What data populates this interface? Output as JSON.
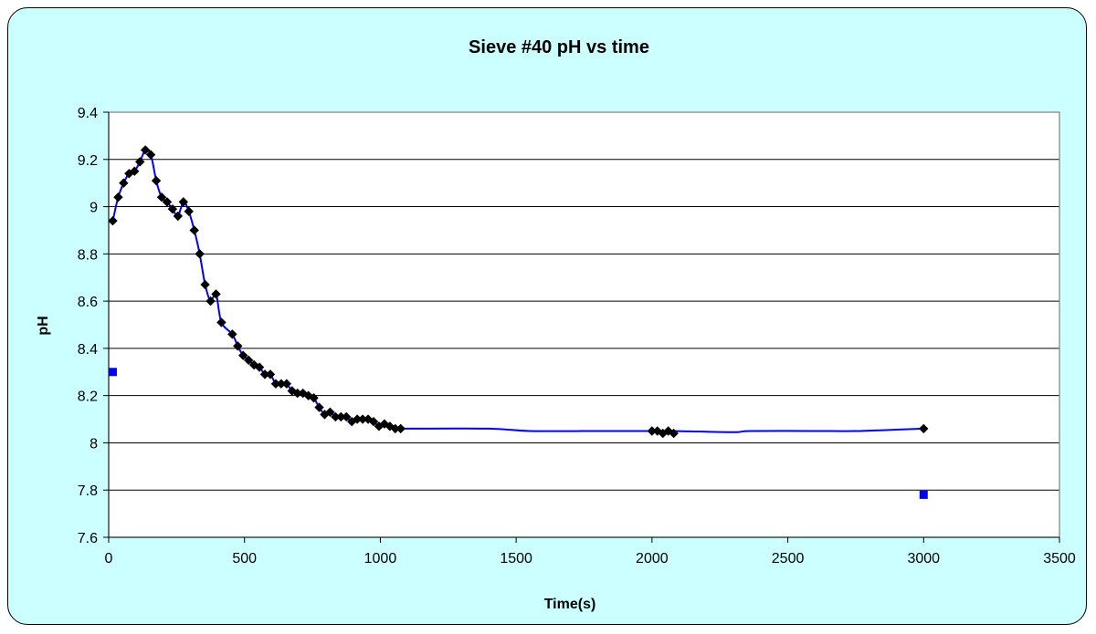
{
  "chart_data": {
    "type": "scatter",
    "title": "Sieve #40 pH vs time",
    "xlabel": "Time(s)",
    "ylabel": "pH",
    "xlim": [
      0,
      3500
    ],
    "ylim": [
      7.6,
      9.4
    ],
    "xticks": [
      0,
      500,
      1000,
      1500,
      2000,
      2500,
      3000,
      3500
    ],
    "yticks": [
      7.6,
      7.8,
      8,
      8.2,
      8.4,
      8.6,
      8.8,
      9,
      9.2,
      9.4
    ],
    "xtick_labels": [
      "0",
      "500",
      "1000",
      "1500",
      "2000",
      "2500",
      "3000",
      "3500"
    ],
    "ytick_labels": [
      "7.6",
      "7.8",
      "8",
      "8.2",
      "8.4",
      "8.6",
      "8.8",
      "9",
      "9.2",
      "9.4"
    ],
    "grid": "horizontal",
    "legend": "none",
    "series": [
      {
        "marker": "diamond",
        "color": "#000000",
        "line_color": "#0000ff",
        "line": "smooth",
        "x": [
          15,
          35,
          55,
          75,
          95,
          115,
          135,
          155,
          175,
          195,
          215,
          235,
          255,
          275,
          295,
          315,
          335,
          355,
          375,
          395,
          415,
          455,
          475,
          495,
          515,
          535,
          555,
          575,
          595,
          615,
          635,
          655,
          675,
          695,
          715,
          735,
          755,
          775,
          795,
          815,
          835,
          855,
          875,
          895,
          915,
          935,
          955,
          975,
          995,
          1015,
          1035,
          1055,
          1075,
          2000,
          2020,
          2040,
          2060,
          2080,
          3000
        ],
        "y": [
          8.94,
          9.04,
          9.1,
          9.14,
          9.15,
          9.19,
          9.24,
          9.22,
          9.11,
          9.04,
          9.02,
          8.99,
          8.96,
          9.02,
          8.98,
          8.9,
          8.8,
          8.67,
          8.6,
          8.63,
          8.51,
          8.46,
          8.41,
          8.37,
          8.35,
          8.33,
          8.32,
          8.29,
          8.29,
          8.25,
          8.25,
          8.25,
          8.22,
          8.21,
          8.21,
          8.2,
          8.19,
          8.15,
          8.12,
          8.13,
          8.11,
          8.11,
          8.11,
          8.09,
          8.1,
          8.1,
          8.1,
          8.09,
          8.07,
          8.08,
          8.07,
          8.06,
          8.06,
          8.05,
          8.05,
          8.04,
          8.05,
          8.04,
          8.06
        ]
      },
      {
        "marker": "square",
        "color": "#0000ff",
        "x": [
          15,
          3000
        ],
        "y": [
          8.3,
          7.78
        ]
      }
    ],
    "trend_line": {
      "color": "#0000ff",
      "x": [
        15,
        35,
        55,
        75,
        95,
        115,
        135,
        155,
        175,
        195,
        215,
        235,
        255,
        275,
        295,
        315,
        335,
        355,
        375,
        395,
        415,
        455,
        475,
        495,
        515,
        535,
        555,
        575,
        595,
        615,
        635,
        655,
        675,
        695,
        715,
        735,
        755,
        775,
        795,
        815,
        835,
        855,
        875,
        895,
        915,
        935,
        955,
        975,
        995,
        1015,
        1035,
        1055,
        1075,
        1400,
        1550,
        1800,
        2000,
        2020,
        2040,
        2060,
        2080,
        2300,
        2360,
        2600,
        2750,
        2880,
        3000
      ],
      "y": [
        8.94,
        9.04,
        9.1,
        9.14,
        9.15,
        9.19,
        9.24,
        9.22,
        9.11,
        9.04,
        9.02,
        8.99,
        8.96,
        9.02,
        8.98,
        8.9,
        8.8,
        8.67,
        8.6,
        8.63,
        8.51,
        8.46,
        8.41,
        8.37,
        8.35,
        8.33,
        8.32,
        8.29,
        8.29,
        8.25,
        8.25,
        8.25,
        8.22,
        8.21,
        8.21,
        8.2,
        8.19,
        8.15,
        8.12,
        8.13,
        8.11,
        8.11,
        8.11,
        8.09,
        8.1,
        8.1,
        8.1,
        8.09,
        8.07,
        8.08,
        8.07,
        8.06,
        8.06,
        8.06,
        8.05,
        8.05,
        8.05,
        8.05,
        8.05,
        8.05,
        8.05,
        8.045,
        8.05,
        8.05,
        8.05,
        8.055,
        8.06
      ]
    }
  }
}
